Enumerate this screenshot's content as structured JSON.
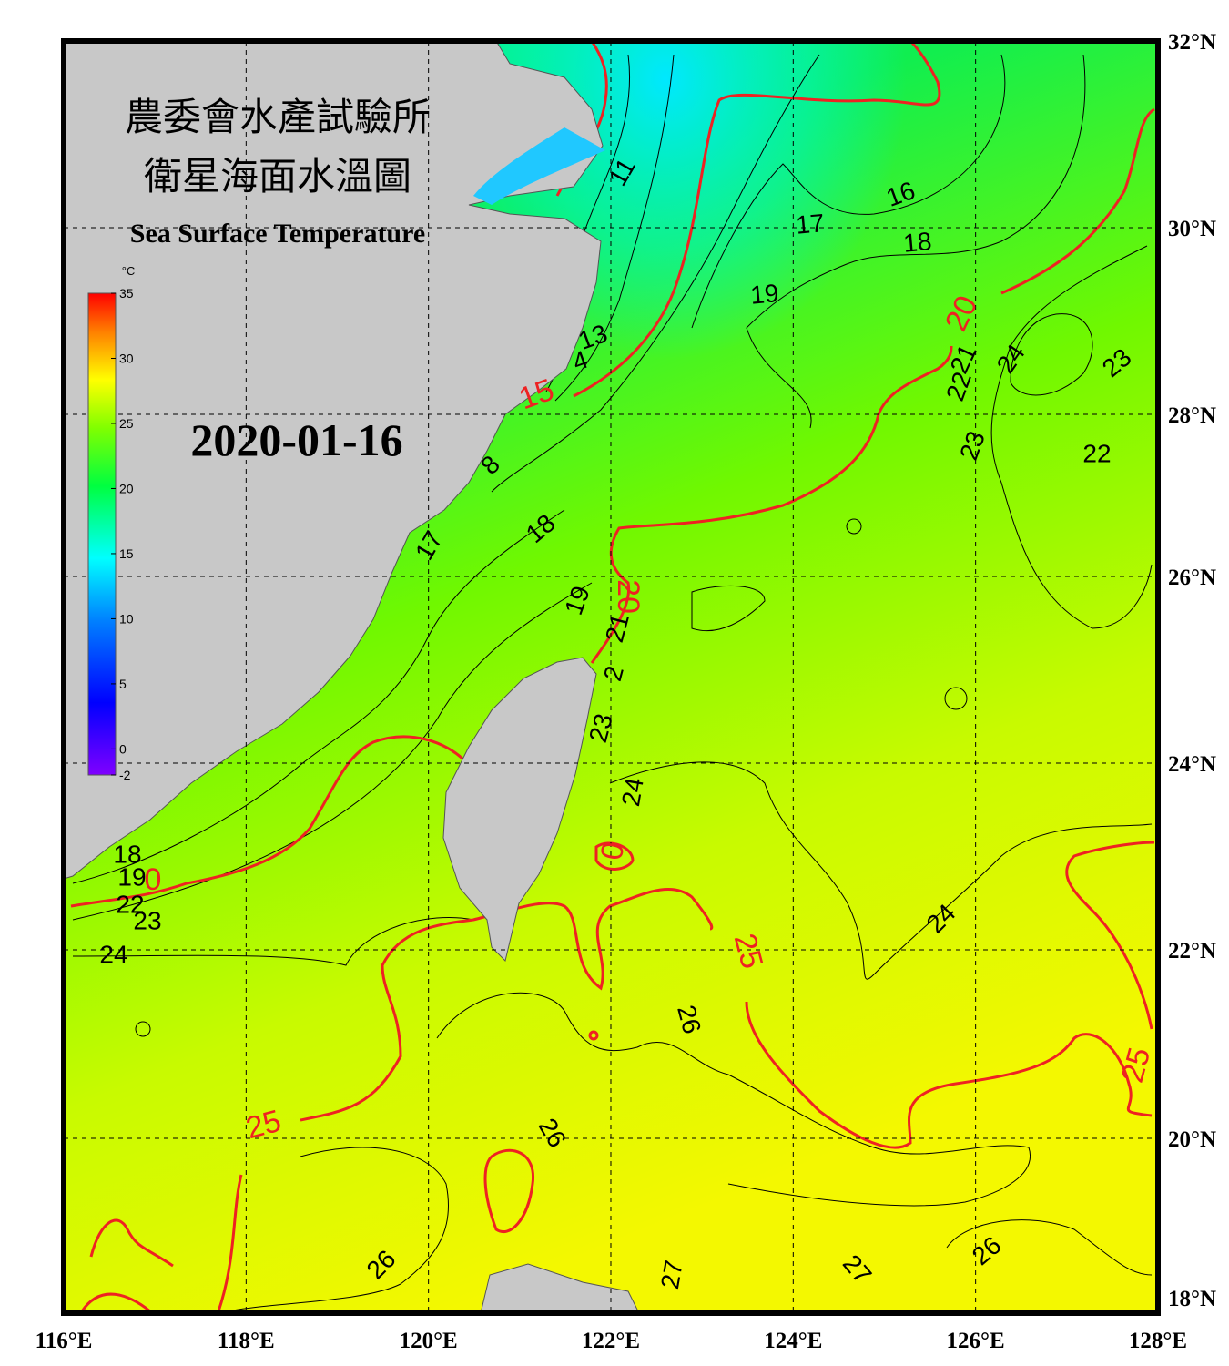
{
  "header": {
    "title_zh": "農委會水產試驗所",
    "subtitle_zh": "衛星海面水溫圖",
    "title_en": "Sea Surface Temperature",
    "date": "2020-01-16"
  },
  "colorbar": {
    "unit": "°C",
    "range": [
      -2,
      35
    ],
    "ticks": [
      35,
      30,
      25,
      20,
      15,
      10,
      5,
      0,
      -2
    ]
  },
  "map": {
    "lon_labels": [
      "116°E",
      "118°E",
      "120°E",
      "122°E",
      "124°E",
      "126°E",
      "128°E"
    ],
    "lat_labels": [
      "32°N",
      "30°N",
      "28°N",
      "26°N",
      "24°N",
      "22°N",
      "20°N",
      "18°N"
    ],
    "contour_labels": [
      {
        "text": "11",
        "color": "black"
      },
      {
        "text": "16",
        "color": "black"
      },
      {
        "text": "17",
        "color": "black"
      },
      {
        "text": "18",
        "color": "black"
      },
      {
        "text": "19",
        "color": "black"
      },
      {
        "text": "20",
        "color": "red"
      },
      {
        "text": "21",
        "color": "black"
      },
      {
        "text": "24",
        "color": "black"
      },
      {
        "text": "23",
        "color": "black"
      },
      {
        "text": "22",
        "color": "black"
      },
      {
        "text": "13",
        "color": "black"
      },
      {
        "text": "4",
        "color": "black"
      },
      {
        "text": "15",
        "color": "red"
      },
      {
        "text": "23",
        "color": "black"
      },
      {
        "text": "22",
        "color": "black"
      },
      {
        "text": "8",
        "color": "black"
      },
      {
        "text": "18",
        "color": "black"
      },
      {
        "text": "17",
        "color": "black"
      },
      {
        "text": "20",
        "color": "red"
      },
      {
        "text": "19",
        "color": "black"
      },
      {
        "text": "21",
        "color": "black"
      },
      {
        "text": "2",
        "color": "black"
      },
      {
        "text": "23",
        "color": "black"
      },
      {
        "text": "24",
        "color": "black"
      },
      {
        "text": "0",
        "color": "red"
      },
      {
        "text": "18",
        "color": "black"
      },
      {
        "text": "19",
        "color": "black"
      },
      {
        "text": "0",
        "color": "red"
      },
      {
        "text": "22",
        "color": "black"
      },
      {
        "text": "23",
        "color": "black"
      },
      {
        "text": "24",
        "color": "black"
      },
      {
        "text": "24",
        "color": "black"
      },
      {
        "text": "25",
        "color": "red"
      },
      {
        "text": "26",
        "color": "black"
      },
      {
        "text": "25",
        "color": "red"
      },
      {
        "text": "25",
        "color": "red"
      },
      {
        "text": "26",
        "color": "black"
      },
      {
        "text": "26",
        "color": "black"
      },
      {
        "text": "27",
        "color": "black"
      },
      {
        "text": "27",
        "color": "black"
      },
      {
        "text": "26",
        "color": "black"
      }
    ]
  }
}
